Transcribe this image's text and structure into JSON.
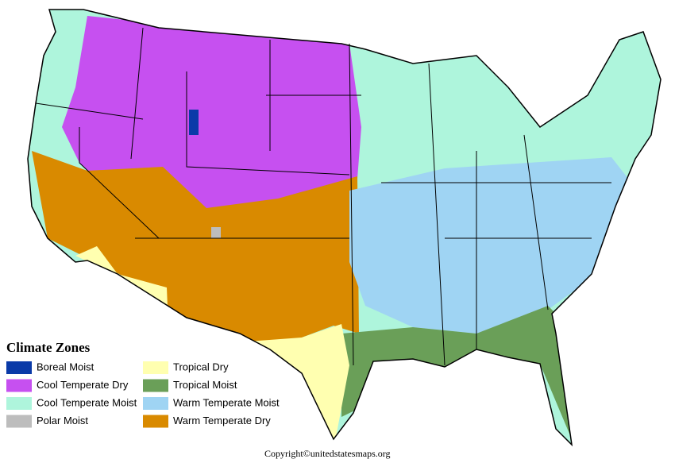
{
  "legend": {
    "title": "Climate Zones",
    "items": [
      {
        "label": "Boreal Moist",
        "color": "#0a3aa8"
      },
      {
        "label": "Cool Temperate Dry",
        "color": "#c650f0"
      },
      {
        "label": "Cool Temperate Moist",
        "color": "#aef5dc"
      },
      {
        "label": "Polar Moist",
        "color": "#bdbdbd"
      },
      {
        "label": "Tropical Dry",
        "color": "#ffffb0"
      },
      {
        "label": "Tropical Moist",
        "color": "#6a9f58"
      },
      {
        "label": "Warm Temperate Moist",
        "color": "#9fd4f3"
      },
      {
        "label": "Warm Temperate Dry",
        "color": "#d98a00"
      }
    ]
  },
  "footer": {
    "copyright": "Copyright©unitedstatesmaps.org"
  }
}
